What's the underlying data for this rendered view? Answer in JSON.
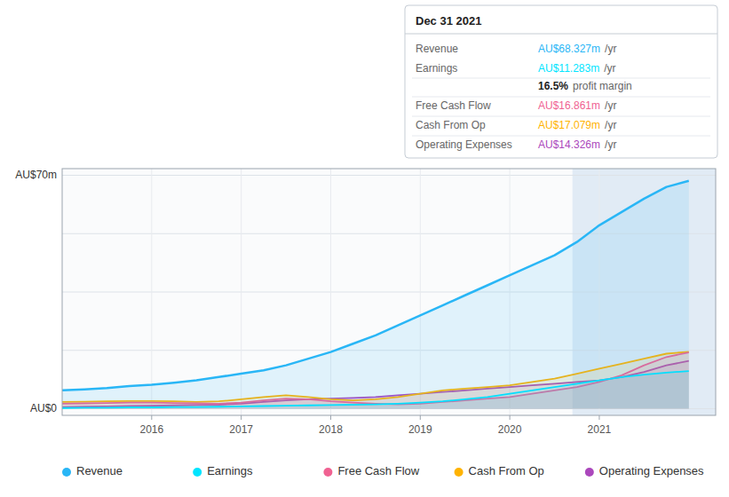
{
  "chart_data": {
    "type": "area",
    "x": [
      2015.0,
      2015.25,
      2015.5,
      2015.75,
      2016.0,
      2016.25,
      2016.5,
      2016.75,
      2017.0,
      2017.25,
      2017.5,
      2017.75,
      2018.0,
      2018.25,
      2018.5,
      2018.75,
      2019.0,
      2019.25,
      2019.5,
      2019.75,
      2020.0,
      2020.25,
      2020.5,
      2020.75,
      2021.0,
      2021.25,
      2021.5,
      2021.75,
      2022.0
    ],
    "series": [
      {
        "name": "Revenue",
        "color": "#29b6f6",
        "values": [
          5.5,
          5.8,
          6.2,
          6.8,
          7.2,
          7.8,
          8.5,
          9.5,
          10.5,
          11.5,
          13.0,
          15.0,
          17.0,
          19.5,
          22.0,
          25.0,
          28.0,
          31.0,
          34.0,
          37.0,
          40.0,
          43.0,
          46.0,
          50.0,
          55.0,
          59.0,
          63.0,
          66.5,
          68.327
        ]
      },
      {
        "name": "Earnings",
        "color": "#00e5ff",
        "values": [
          0.2,
          0.3,
          0.3,
          0.4,
          0.4,
          0.5,
          0.5,
          0.6,
          0.7,
          0.8,
          0.9,
          1.0,
          1.1,
          1.2,
          1.3,
          1.5,
          1.8,
          2.2,
          2.8,
          3.5,
          4.5,
          5.5,
          6.5,
          7.5,
          8.5,
          9.5,
          10.2,
          10.8,
          11.283
        ]
      },
      {
        "name": "Free Cash Flow",
        "color": "#f06292",
        "values": [
          1.5,
          1.6,
          1.7,
          1.8,
          1.8,
          1.7,
          1.6,
          1.5,
          1.8,
          2.5,
          3.0,
          2.8,
          2.2,
          1.8,
          1.5,
          1.3,
          1.5,
          2.0,
          2.5,
          3.0,
          3.5,
          4.5,
          5.5,
          6.5,
          8.0,
          10.0,
          13.0,
          15.5,
          16.861
        ]
      },
      {
        "name": "Cash From Op",
        "color": "#ffb300",
        "values": [
          2.0,
          2.1,
          2.2,
          2.3,
          2.3,
          2.2,
          2.0,
          2.2,
          2.8,
          3.5,
          4.0,
          3.5,
          2.8,
          2.5,
          2.8,
          3.5,
          4.5,
          5.5,
          6.0,
          6.5,
          7.0,
          8.0,
          9.0,
          10.5,
          12.0,
          13.5,
          15.0,
          16.5,
          17.079
        ]
      },
      {
        "name": "Operating Expenses",
        "color": "#ab47bc",
        "values": [
          0.5,
          0.6,
          0.7,
          0.8,
          0.9,
          1.0,
          1.1,
          1.2,
          1.5,
          2.0,
          2.5,
          2.8,
          3.0,
          3.2,
          3.5,
          4.0,
          4.5,
          5.0,
          5.5,
          6.0,
          6.5,
          7.0,
          7.5,
          8.0,
          8.5,
          9.5,
          11.0,
          13.0,
          14.326
        ]
      }
    ],
    "xlim": [
      2015.0,
      2022.3
    ],
    "ylim": [
      -2,
      72
    ],
    "xticks": [
      2016,
      2017,
      2018,
      2019,
      2020,
      2021
    ],
    "yticks": [
      0,
      17.5,
      35,
      52.5,
      70
    ],
    "tick_labels": "x",
    "grid": true,
    "highlight": [
      2020.7,
      2022.3
    ],
    "annotations": [
      {
        "text": "AU$70m",
        "y": 70
      },
      {
        "text": "AU$0",
        "y": 0
      }
    ],
    "info_box": {
      "title": "Dec 31 2021",
      "rows": [
        {
          "label": "Revenue",
          "value": 68.327,
          "value_label": "AU$68.327m",
          "unit": "/yr",
          "color": "#29b6f6"
        },
        {
          "label": "Earnings",
          "value": 11.283,
          "value_label": "AU$11.283m",
          "unit": "/yr",
          "color": "#00e5ff"
        },
        {
          "value": 16.5,
          "value_label": "16.5%",
          "unit": "profit margin"
        },
        {
          "label": "Free Cash Flow",
          "value": 16.861,
          "value_label": "AU$16.861m",
          "unit": "/yr",
          "color": "#f06292"
        },
        {
          "label": "Cash From Op",
          "value": 17.079,
          "value_label": "AU$17.079m",
          "unit": "/yr",
          "color": "#ffb300"
        },
        {
          "label": "Operating Expenses",
          "value": 14.326,
          "value_label": "AU$14.326m",
          "unit": "/yr",
          "color": "#ab47bc"
        }
      ]
    }
  }
}
